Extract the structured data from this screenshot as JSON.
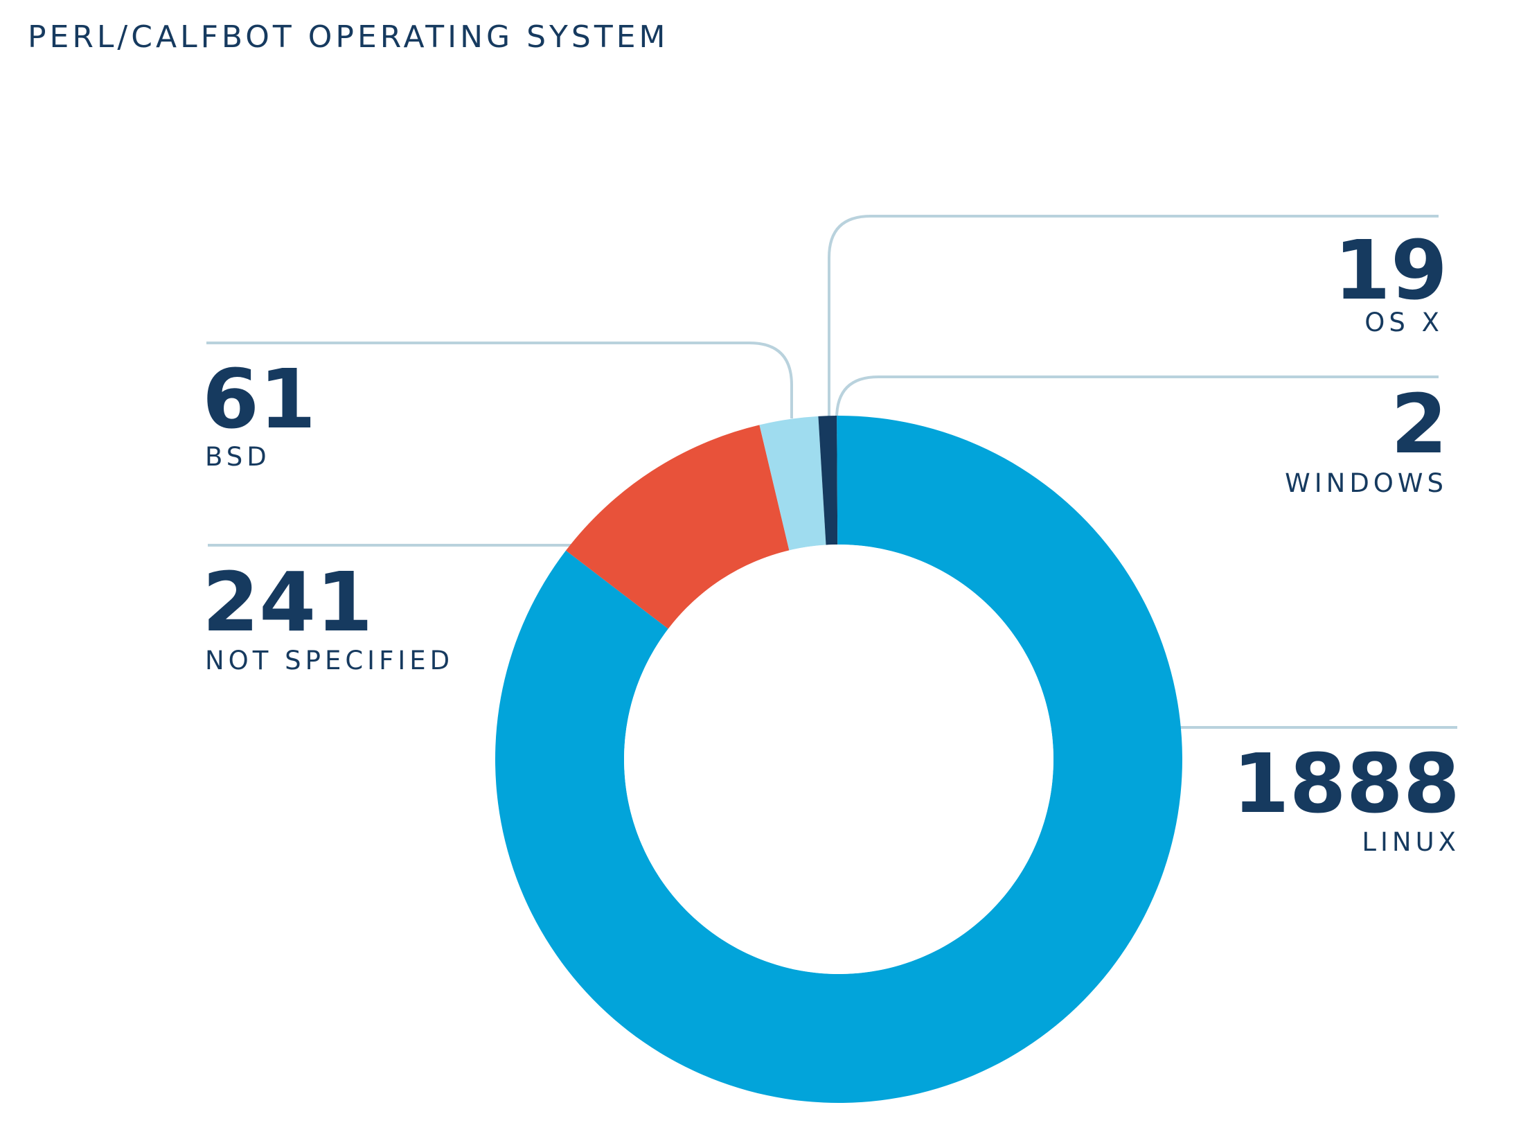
{
  "title": "PERL/CALFBOT OPERATING SYSTEM",
  "chart_data": {
    "type": "pie",
    "subtype": "donut",
    "title": "PERL/CALFBOT OPERATING SYSTEM",
    "slices": [
      {
        "label": "LINUX",
        "value": 1888,
        "color": "#02a4da"
      },
      {
        "label": "NOT SPECIFIED",
        "value": 241,
        "color": "#e8523a"
      },
      {
        "label": "BSD",
        "value": 61,
        "color": "#9fdcef"
      },
      {
        "label": "OS X",
        "value": 19,
        "color": "#163a5f"
      },
      {
        "label": "WINDOWS",
        "value": 2,
        "color": "#02a4da"
      }
    ]
  }
}
